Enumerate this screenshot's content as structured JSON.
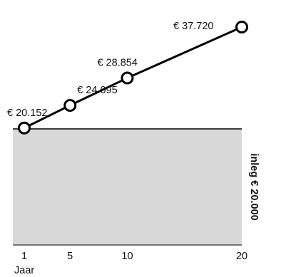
{
  "chart_data": {
    "type": "line",
    "x": [
      1,
      5,
      10,
      20
    ],
    "values": [
      20152,
      24095,
      28854,
      37720
    ],
    "data_labels": [
      "€ 20.152",
      "€ 24.095",
      "€ 28.854",
      "€ 37.720"
    ],
    "tick_labels": [
      "1",
      "5",
      "10",
      "20"
    ],
    "xlabel": "Jaar",
    "xlim": [
      1,
      20
    ],
    "ylim": [
      0,
      40000
    ],
    "deposit": {
      "value": 20000,
      "label": "inleg € 20.000",
      "color": "#d8d8d8"
    },
    "line_color": "#000000",
    "marker_fill": "#ffffff"
  }
}
